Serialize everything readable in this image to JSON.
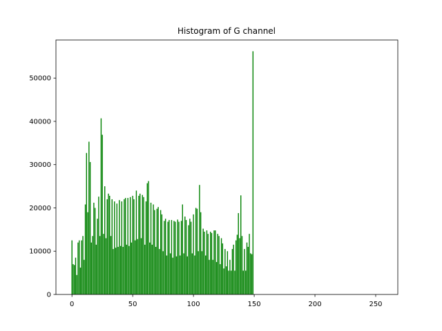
{
  "chart_data": {
    "type": "bar",
    "title": "Histogram of G channel",
    "color": "green",
    "bar_width": 0.8,
    "x": [
      0,
      1,
      2,
      3,
      4,
      5,
      6,
      7,
      8,
      9,
      10,
      11,
      12,
      13,
      14,
      15,
      16,
      17,
      18,
      19,
      20,
      21,
      22,
      23,
      24,
      25,
      26,
      27,
      28,
      29,
      30,
      31,
      32,
      33,
      34,
      35,
      36,
      37,
      38,
      39,
      40,
      41,
      42,
      43,
      44,
      45,
      46,
      47,
      48,
      49,
      50,
      51,
      52,
      53,
      54,
      55,
      56,
      57,
      58,
      59,
      60,
      61,
      62,
      63,
      64,
      65,
      66,
      67,
      68,
      69,
      70,
      71,
      72,
      73,
      74,
      75,
      76,
      77,
      78,
      79,
      80,
      81,
      82,
      83,
      84,
      85,
      86,
      87,
      88,
      89,
      90,
      91,
      92,
      93,
      94,
      95,
      96,
      97,
      98,
      99,
      100,
      101,
      102,
      103,
      104,
      105,
      106,
      107,
      108,
      109,
      110,
      111,
      112,
      113,
      114,
      115,
      116,
      117,
      118,
      119,
      120,
      121,
      122,
      123,
      124,
      125,
      126,
      127,
      128,
      129,
      130,
      131,
      132,
      133,
      134,
      135,
      136,
      137,
      138,
      139,
      140,
      141,
      142,
      143,
      144,
      145,
      146,
      147,
      148,
      149
    ],
    "values": [
      12500,
      7000,
      6800,
      8500,
      4500,
      12000,
      12500,
      6200,
      12500,
      13500,
      8000,
      20800,
      32700,
      19000,
      35300,
      30600,
      12000,
      13500,
      21200,
      20000,
      11500,
      17500,
      22600,
      13500,
      40700,
      36900,
      14000,
      25000,
      13000,
      22000,
      23300,
      22800,
      13500,
      22000,
      10500,
      21500,
      10800,
      21000,
      11000,
      21800,
      11200,
      21500,
      11000,
      22000,
      22300,
      11500,
      22300,
      11200,
      22500,
      12000,
      22800,
      22000,
      12500,
      24000,
      12800,
      22800,
      23300,
      13000,
      23000,
      22500,
      11500,
      21500,
      25700,
      26200,
      12000,
      21200,
      11500,
      20800,
      19500,
      11000,
      19800,
      20200,
      10500,
      19500,
      18500,
      10000,
      17000,
      17500,
      9000,
      16800,
      17200,
      9500,
      17200,
      8500,
      17000,
      16800,
      8800,
      17300,
      16800,
      9000,
      17000,
      20800,
      9500,
      18000,
      17200,
      8800,
      16000,
      17500,
      16800,
      9500,
      18500,
      9000,
      20000,
      19800,
      10000,
      25300,
      19000,
      10000,
      15200,
      14500,
      9000,
      14800,
      14000,
      8000,
      14500,
      14200,
      8000,
      14800,
      14800,
      7500,
      14000,
      13500,
      7000,
      13000,
      11800,
      6000,
      10500,
      6500,
      10000,
      5500,
      8000,
      5500,
      10500,
      11500,
      5500,
      12500,
      13800,
      18800,
      13000,
      22900,
      13500,
      5500,
      10500,
      5500,
      12000,
      11000,
      14000,
      9500,
      9300,
      56200
    ],
    "xlim": [
      -13.19,
      268.19
    ],
    "xticks": [
      0,
      50,
      100,
      150,
      200,
      250
    ],
    "ylim": [
      0,
      58800
    ],
    "yticks": [
      0,
      10000,
      20000,
      30000,
      40000,
      50000
    ]
  }
}
